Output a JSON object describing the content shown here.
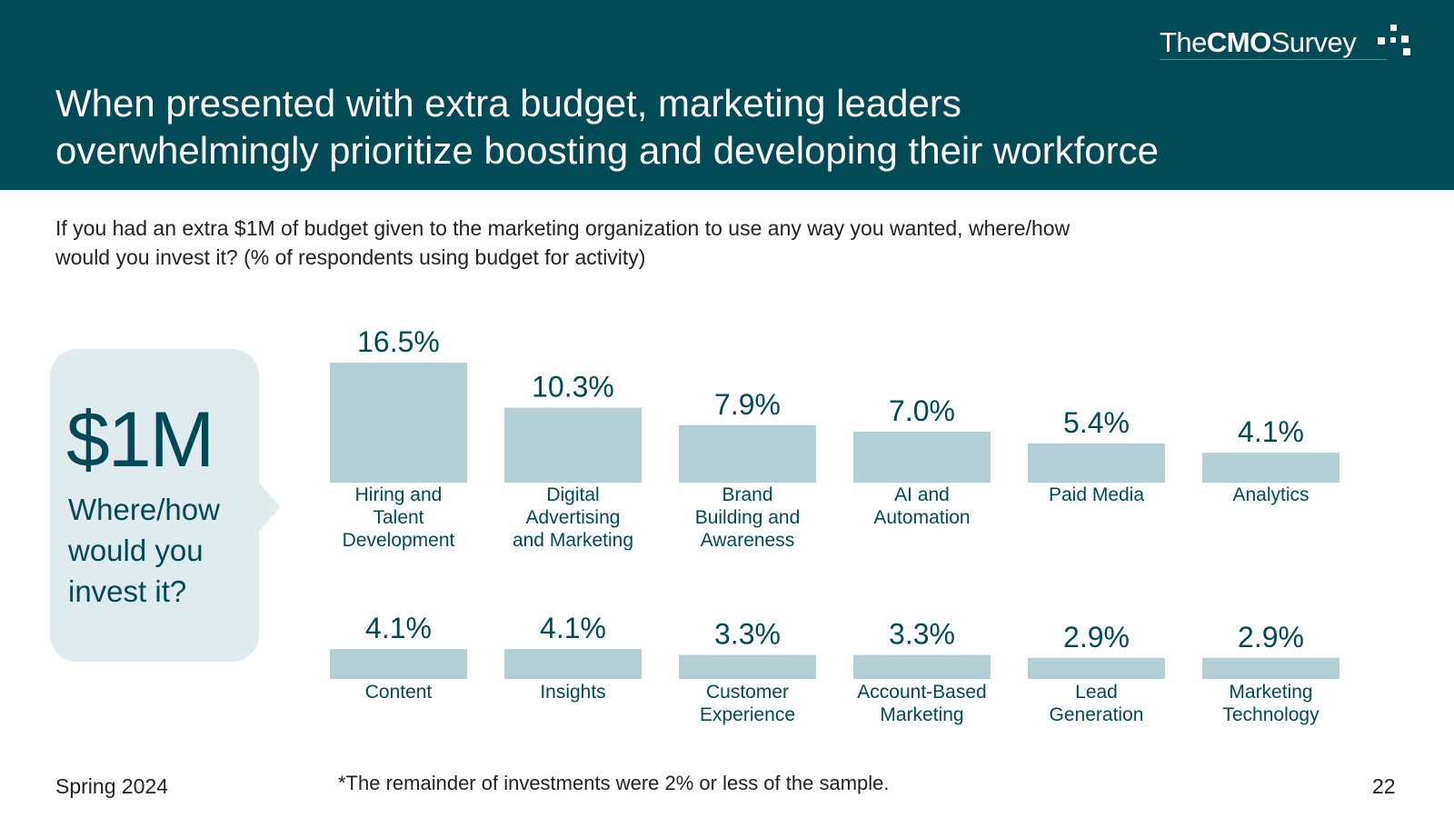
{
  "header": {
    "title_line1": "When presented with extra budget, marketing leaders",
    "title_line2": "overwhelmingly prioritize boosting and developing their workforce",
    "logo": {
      "prefix": "The",
      "strong": "CMO",
      "suffix": "Survey"
    },
    "background_color": "#024a55"
  },
  "subtitle": {
    "line1": "If you had an extra $1M of budget given to the marketing organization to use any way you wanted, where/how",
    "line2": "would you invest it? (% of respondents using budget for activity)"
  },
  "callout": {
    "amount": "$1M",
    "line1": "Where/how",
    "line2": "would you",
    "line3": "invest it?"
  },
  "chart_data": {
    "type": "bar",
    "unit": "%",
    "bar_color": "#b5d0d5",
    "label_color": "#024a55",
    "rows": [
      {
        "items": [
          {
            "category": [
              "Hiring and",
              "Talent",
              "Development"
            ],
            "value": 16.5,
            "label": "16.5%"
          },
          {
            "category": [
              "Digital",
              "Advertising",
              "and Marketing"
            ],
            "value": 10.3,
            "label": "10.3%"
          },
          {
            "category": [
              "Brand",
              "Building and",
              "Awareness"
            ],
            "value": 7.9,
            "label": "7.9%"
          },
          {
            "category": [
              "AI and",
              "Automation"
            ],
            "value": 7.0,
            "label": "7.0%"
          },
          {
            "category": [
              "Paid Media"
            ],
            "value": 5.4,
            "label": "5.4%"
          },
          {
            "category": [
              "Analytics"
            ],
            "value": 4.1,
            "label": "4.1%"
          }
        ]
      },
      {
        "items": [
          {
            "category": [
              "Content"
            ],
            "value": 4.1,
            "label": "4.1%"
          },
          {
            "category": [
              "Insights"
            ],
            "value": 4.1,
            "label": "4.1%"
          },
          {
            "category": [
              "Customer",
              "Experience"
            ],
            "value": 3.3,
            "label": "3.3%"
          },
          {
            "category": [
              "Account-Based",
              "Marketing"
            ],
            "value": 3.3,
            "label": "3.3%"
          },
          {
            "category": [
              "Lead",
              "Generation"
            ],
            "value": 2.9,
            "label": "2.9%"
          },
          {
            "category": [
              "Marketing",
              "Technology"
            ],
            "value": 2.9,
            "label": "2.9%"
          }
        ]
      }
    ]
  },
  "footer": {
    "left": "Spring 2024",
    "footnote": "*The remainder of investments were 2% or less of the sample.",
    "page_number": "22"
  }
}
